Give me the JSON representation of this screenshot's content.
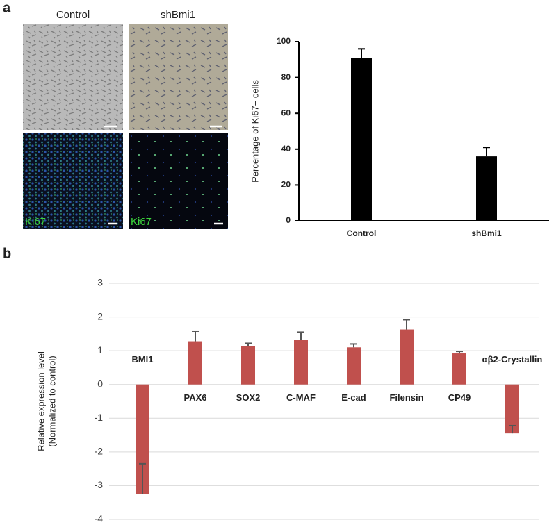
{
  "figure": {
    "panel_labels": [
      "a",
      "b"
    ],
    "image_columns": [
      "Control",
      "shBmi1"
    ],
    "stain_labels": [
      "Ki67",
      "Ki67"
    ]
  },
  "chart_data": [
    {
      "type": "bar",
      "y_label": "Percentage of Ki67+ cells",
      "categories": [
        "Control",
        "shBmi1"
      ],
      "values": [
        91,
        36
      ],
      "errors": [
        5,
        5
      ],
      "color": "#000000",
      "ylim": [
        0,
        100
      ],
      "yticks": [
        0,
        20,
        40,
        60,
        80,
        100
      ],
      "grid": false
    },
    {
      "type": "bar",
      "y_label": [
        "Relative expression level",
        "(Normalized to control)"
      ],
      "categories": [
        "BMI1",
        "PAX6",
        "SOX2",
        "C-MAF",
        "E-cad",
        "Filensin",
        "CP49",
        "αβ2-Crystallin"
      ],
      "values": [
        -3.25,
        1.28,
        1.13,
        1.32,
        1.1,
        1.63,
        0.92,
        -1.45
      ],
      "errors": [
        0.9,
        0.3,
        0.09,
        0.23,
        0.1,
        0.29,
        0.06,
        0.23
      ],
      "color": "#c0504d",
      "ylim": [
        -4,
        3
      ],
      "yticks": [
        -4,
        -3,
        -2,
        -1,
        0,
        1,
        2,
        3
      ],
      "grid": true
    }
  ]
}
